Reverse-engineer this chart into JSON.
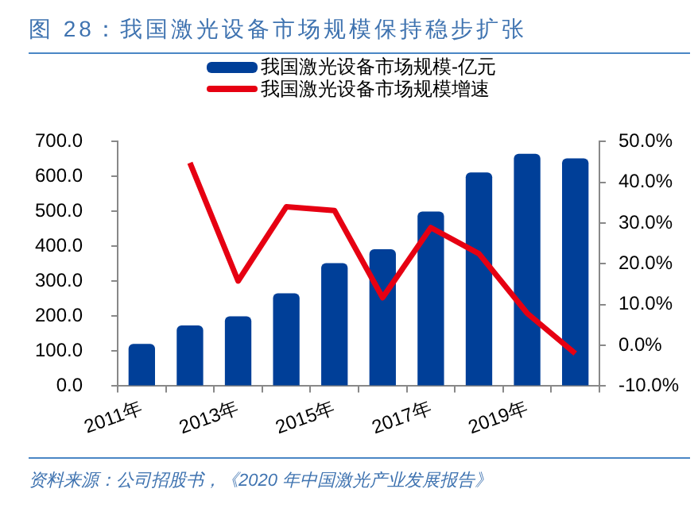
{
  "chart_data": {
    "type": "bar",
    "title": "图 28：我国激光设备市场规模保持稳步扩张",
    "categories": [
      "2011年",
      null,
      "2013年",
      null,
      "2015年",
      null,
      "2017年",
      null,
      "2019年",
      null
    ],
    "series": [
      {
        "name": "我国激光设备市场规模-亿元",
        "color": "#003f98",
        "values": [
          121,
          174,
          200,
          266,
          352,
          392,
          500,
          612,
          665,
          652
        ]
      },
      {
        "name": "我国激光设备市场规模增速",
        "type": "line",
        "axis": "y2",
        "color": "#e60012",
        "values": [
          null,
          44.8,
          15.8,
          34.0,
          33.1,
          11.7,
          28.9,
          22.5,
          7.9,
          -2.0
        ]
      }
    ],
    "ylim": [
      0,
      700
    ],
    "yticks": [
      {
        "value": 0,
        "label": "0.0"
      },
      {
        "value": 100,
        "label": "100.0"
      },
      {
        "value": 200,
        "label": "200.0"
      },
      {
        "value": 300,
        "label": "300.0"
      },
      {
        "value": 400,
        "label": "400.0"
      },
      {
        "value": 500,
        "label": "500.0"
      },
      {
        "value": 600,
        "label": "600.0"
      },
      {
        "value": 700,
        "label": "700.0"
      }
    ],
    "y2lim": [
      -10,
      50
    ],
    "y2ticks": [
      {
        "value": -10,
        "label": "-10.0%"
      },
      {
        "value": 0,
        "label": "0.0%"
      },
      {
        "value": 10,
        "label": "10.0%"
      },
      {
        "value": 20,
        "label": "20.0%"
      },
      {
        "value": 30,
        "label": "30.0%"
      },
      {
        "value": 40,
        "label": "40.0%"
      },
      {
        "value": 50,
        "label": "50.0%"
      }
    ],
    "grid": false,
    "legend": "top",
    "marker": "none",
    "annotations": [
      "资料来源：公司招股书，《2020 年中国激光产业发展报告》"
    ]
  }
}
